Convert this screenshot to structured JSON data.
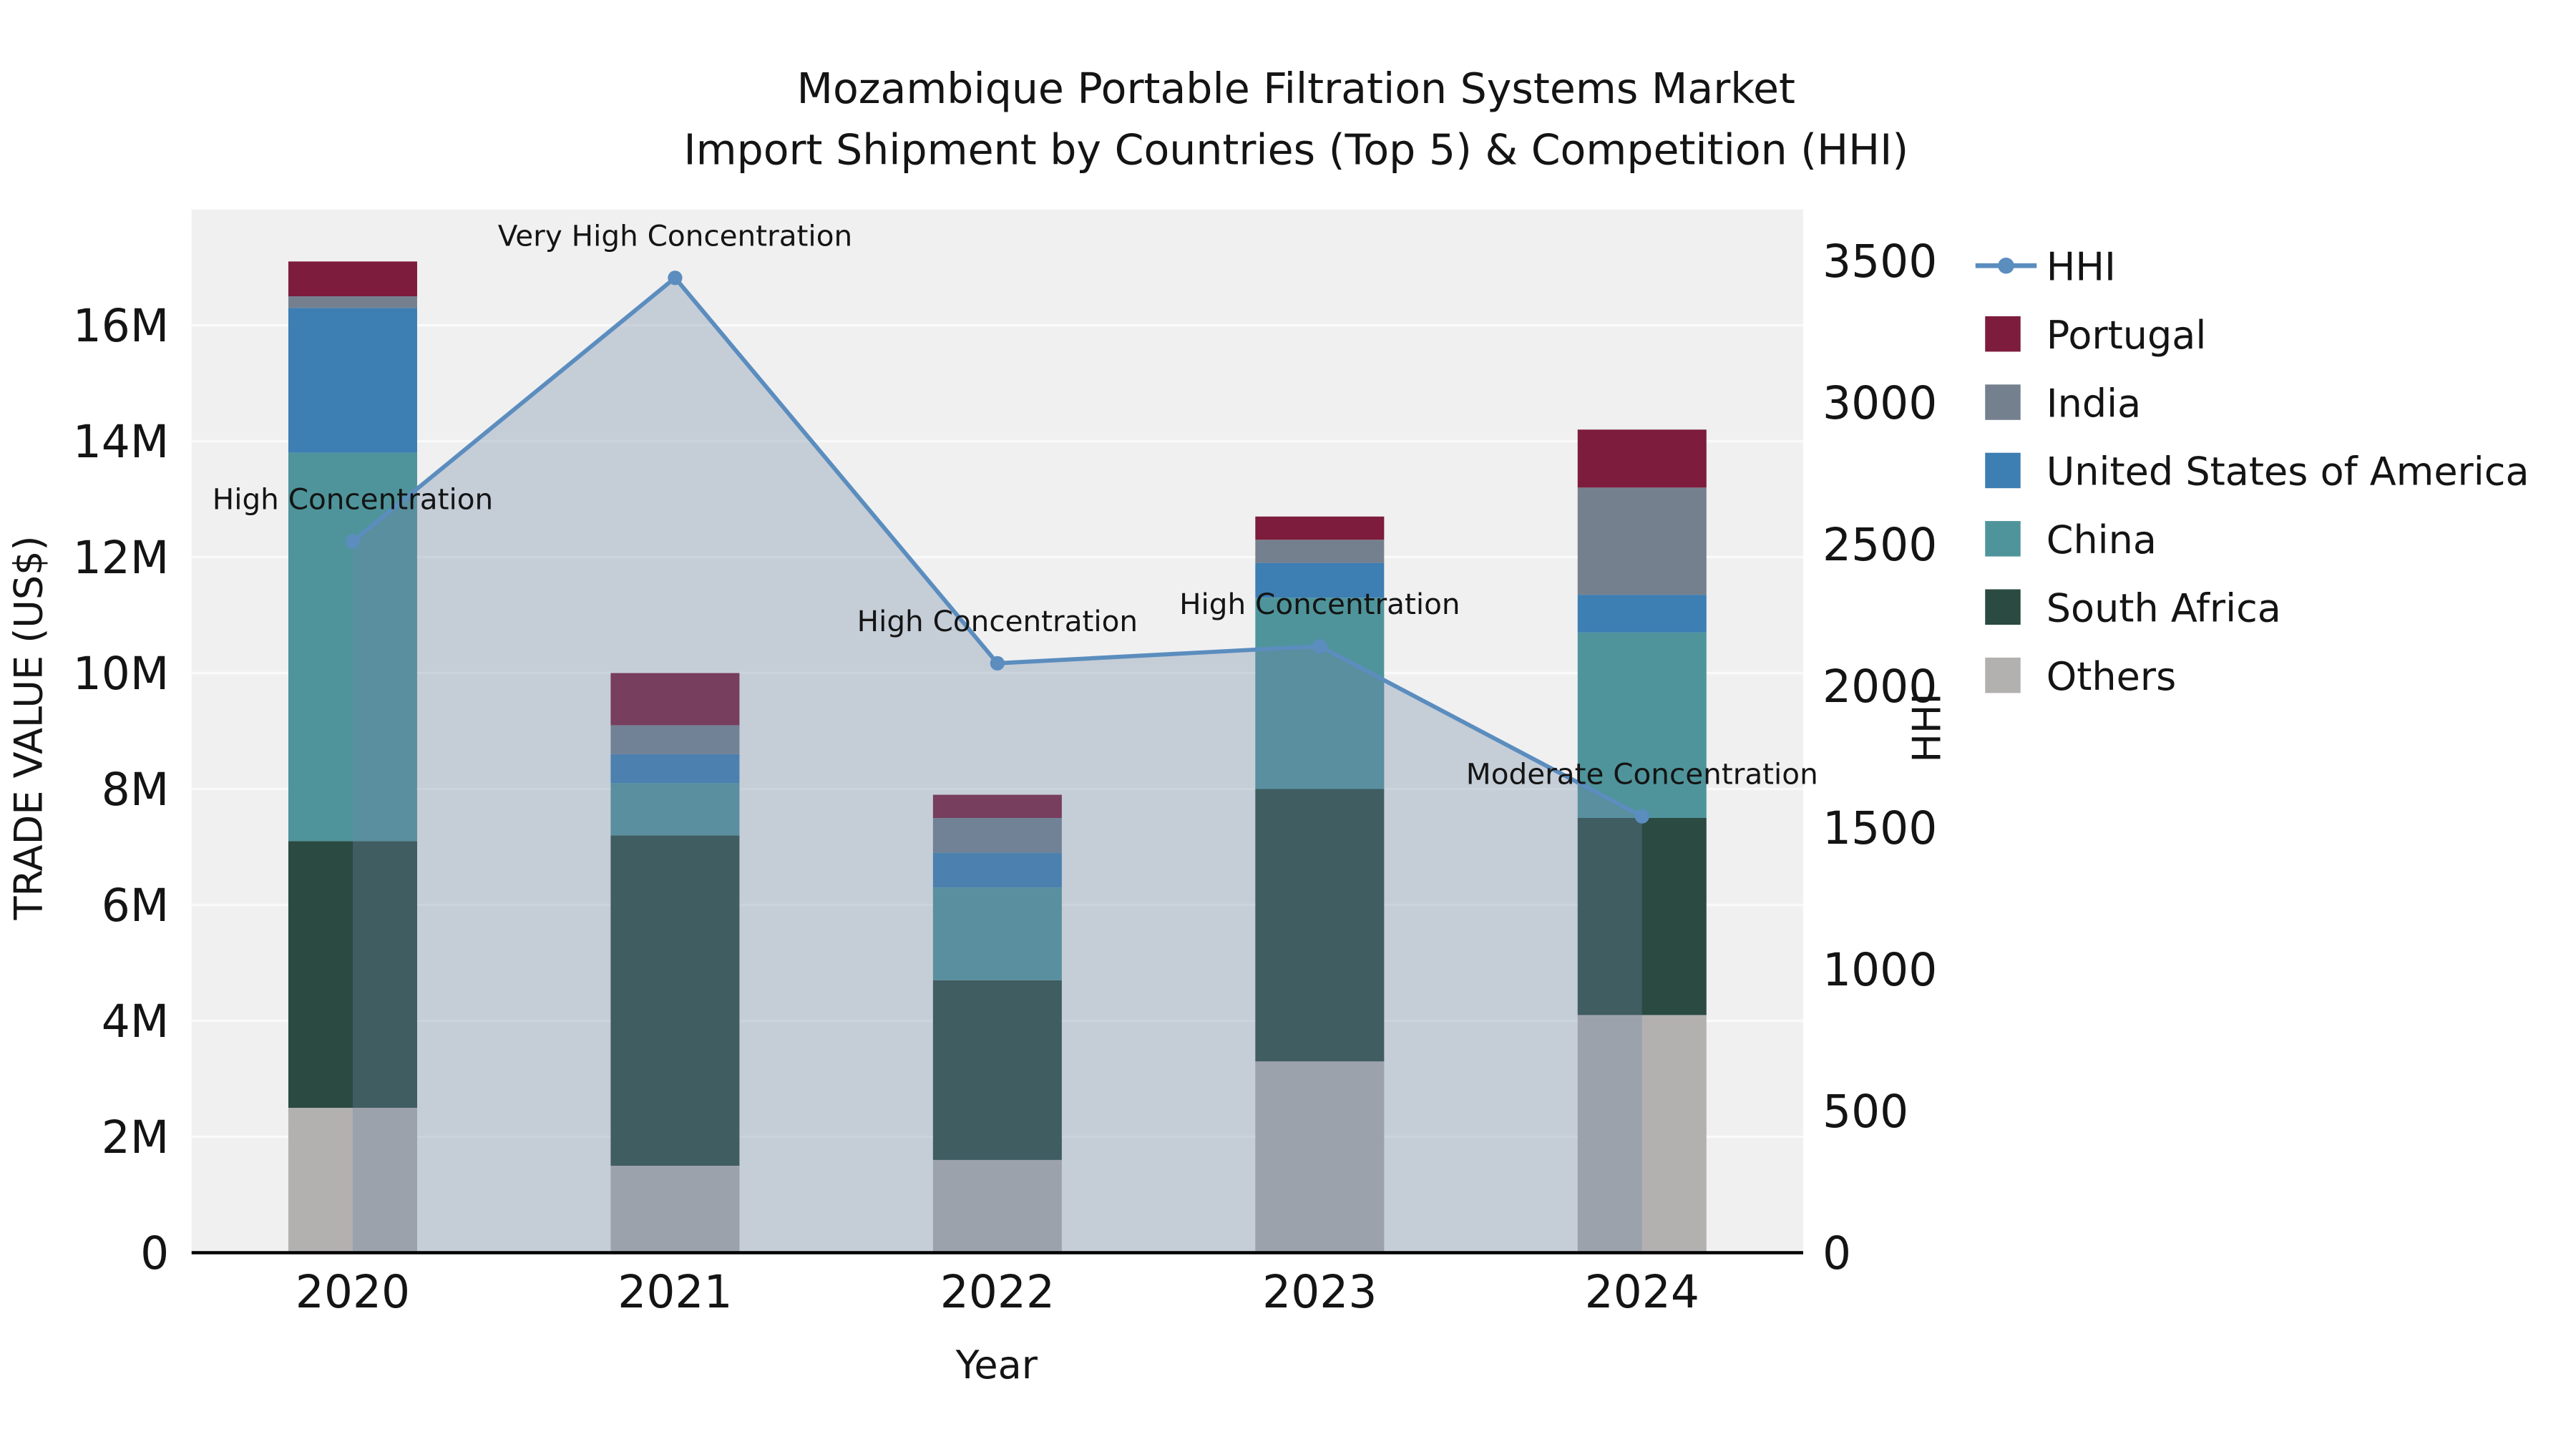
{
  "title": {
    "line1": "Mozambique Portable Filtration Systems Market",
    "line2": "Import Shipment by Countries (Top 5) & Competition (HHI)"
  },
  "axes": {
    "y_left_label": "TRADE VALUE (US$)",
    "y_right_label": "HHI",
    "x_label": "Year"
  },
  "chart_data": {
    "type": "stacked-bar-with-line",
    "categories": [
      "2020",
      "2021",
      "2022",
      "2023",
      "2024"
    ],
    "bar_value_unit": "US$ millions",
    "bar_series": [
      {
        "name": "Others",
        "color": "#b3b0b0",
        "values": [
          2.5,
          1.5,
          1.6,
          3.3,
          4.1
        ]
      },
      {
        "name": "South Africa",
        "color": "#2a4a42",
        "values": [
          4.6,
          5.7,
          3.1,
          4.7,
          3.4
        ]
      },
      {
        "name": "China",
        "color": "#4f949b",
        "values": [
          6.7,
          0.9,
          1.6,
          3.3,
          3.2
        ]
      },
      {
        "name": "United States of America",
        "color": "#3d7eb3",
        "values": [
          2.5,
          0.5,
          0.6,
          0.6,
          0.65
        ]
      },
      {
        "name": "India",
        "color": "#75808f",
        "values": [
          0.2,
          0.5,
          0.6,
          0.4,
          1.85
        ]
      },
      {
        "name": "Portugal",
        "color": "#7d1c3c",
        "values": [
          0.6,
          0.9,
          0.4,
          0.4,
          1.0
        ]
      }
    ],
    "line_series": {
      "name": "HHI",
      "color": "#5b8dbe",
      "area_fill": "rgba(110,135,165,0.33)",
      "values": [
        2510,
        3440,
        2080,
        2140,
        1540
      ]
    },
    "annotations": [
      {
        "category": "2020",
        "text": "High Concentration"
      },
      {
        "category": "2021",
        "text": "Very High Concentration"
      },
      {
        "category": "2022",
        "text": "High Concentration"
      },
      {
        "category": "2023",
        "text": "High Concentration"
      },
      {
        "category": "2024",
        "text": "Moderate Concentration"
      }
    ],
    "axis_left": {
      "max_value": 18,
      "ticks": [
        {
          "label": "0",
          "value": 0
        },
        {
          "label": "2M",
          "value": 2
        },
        {
          "label": "4M",
          "value": 4
        },
        {
          "label": "6M",
          "value": 6
        },
        {
          "label": "8M",
          "value": 8
        },
        {
          "label": "10M",
          "value": 10
        },
        {
          "label": "12M",
          "value": 12
        },
        {
          "label": "14M",
          "value": 14
        },
        {
          "label": "16M",
          "value": 16
        }
      ]
    },
    "axis_right": {
      "max_value": 3500,
      "ticks": [
        {
          "label": "0",
          "value": 0
        },
        {
          "label": "500",
          "value": 500
        },
        {
          "label": "1000",
          "value": 1000
        },
        {
          "label": "1500",
          "value": 1500
        },
        {
          "label": "2000",
          "value": 2000
        },
        {
          "label": "2500",
          "value": 2500
        },
        {
          "label": "3000",
          "value": 3000
        },
        {
          "label": "3500",
          "value": 3500
        }
      ]
    },
    "legend_position": "right",
    "grid": true,
    "legend": [
      {
        "label": "HHI",
        "type": "line",
        "color": "#5b8dbe"
      },
      {
        "label": "Portugal",
        "type": "square",
        "color": "#7d1c3c"
      },
      {
        "label": "India",
        "type": "square",
        "color": "#75808f"
      },
      {
        "label": "United States of America",
        "type": "square",
        "color": "#3d7eb3"
      },
      {
        "label": "China",
        "type": "square",
        "color": "#4f949b"
      },
      {
        "label": "South Africa",
        "type": "square",
        "color": "#2a4a42"
      },
      {
        "label": "Others",
        "type": "square",
        "color": "#b3b0b0"
      }
    ]
  }
}
